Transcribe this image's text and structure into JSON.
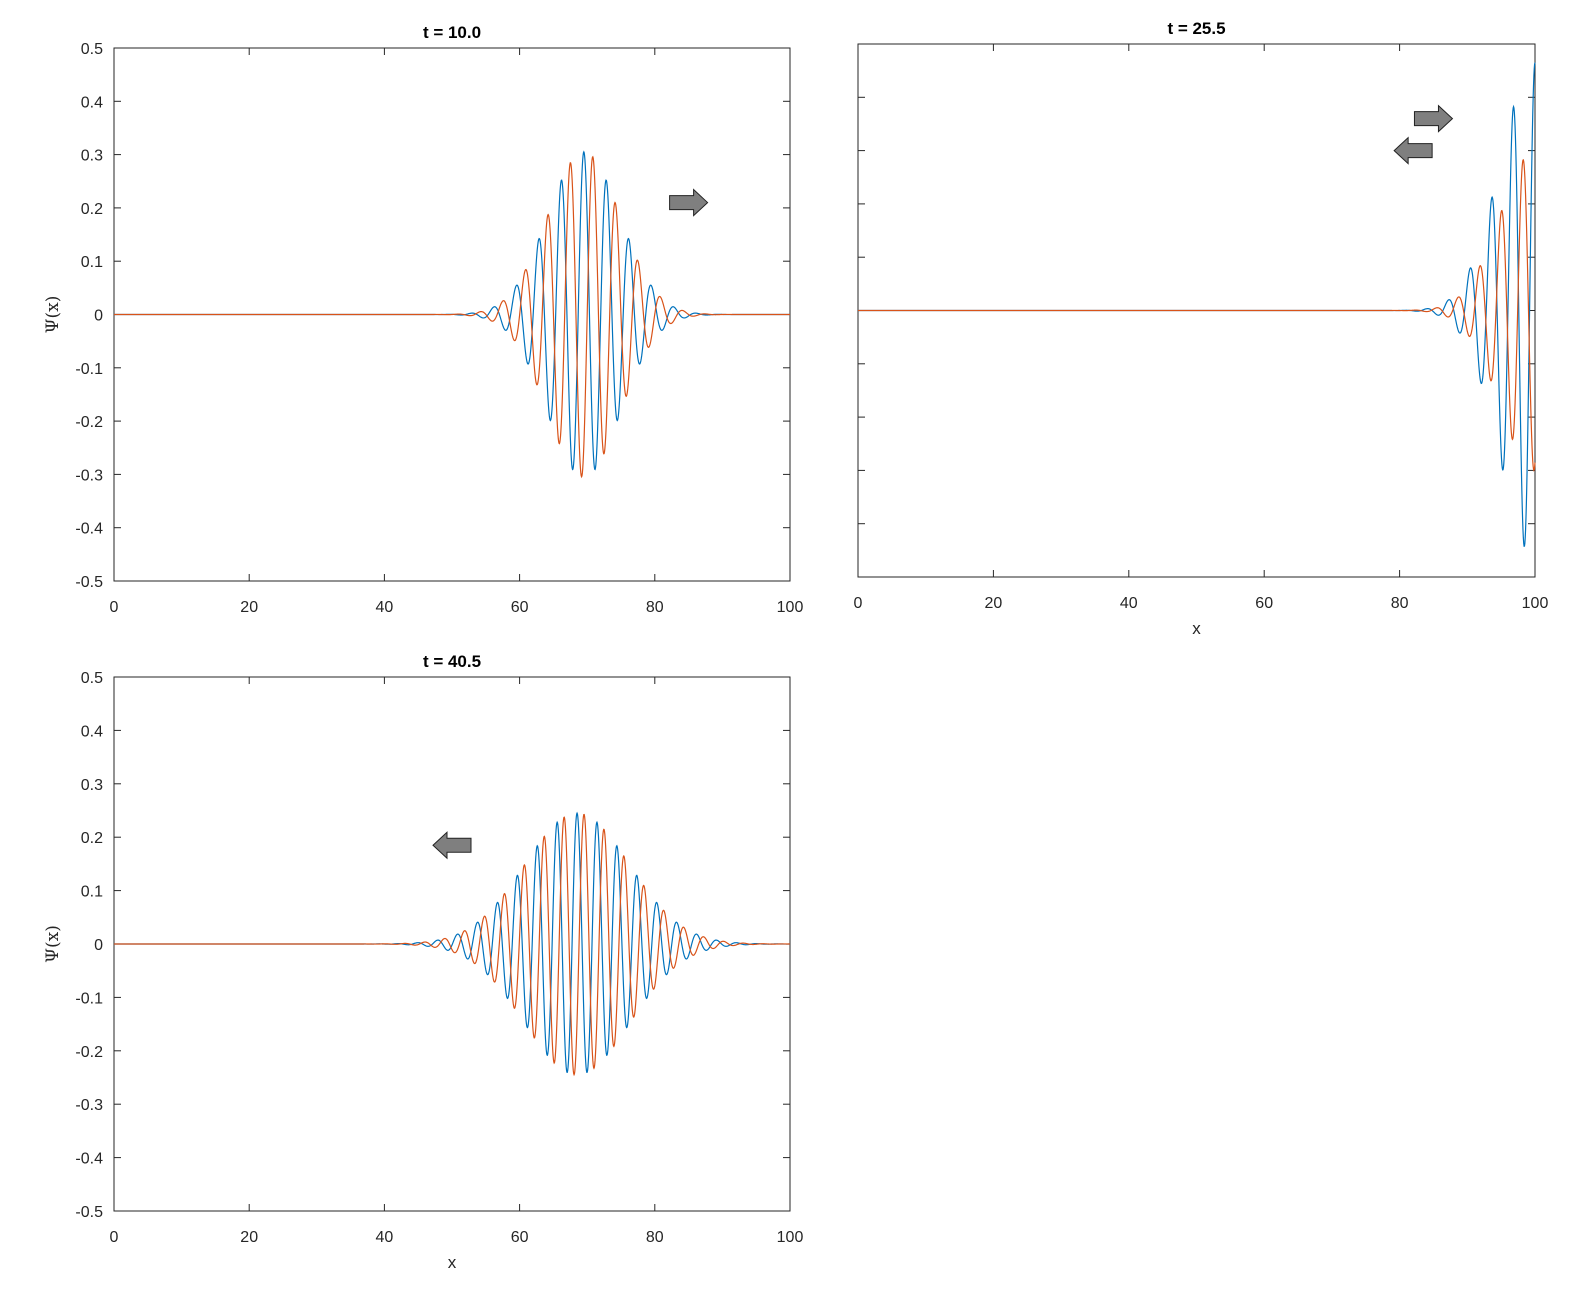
{
  "chart_data": [
    {
      "type": "line",
      "title": "t = 10.0",
      "xlabel": "",
      "ylabel": "Ψ(x)",
      "xlim": [
        0,
        100
      ],
      "ylim": [
        -0.5,
        0.5
      ],
      "xticks": [
        "0",
        "20",
        "40",
        "60",
        "80",
        "100"
      ],
      "yticks": [
        "0.5",
        "0.4",
        "0.3",
        "0.2",
        "0.1",
        "0",
        "-0.1",
        "-0.2",
        "-0.3",
        "-0.4",
        "-0.5"
      ],
      "packet": {
        "center": 69.5,
        "width": 7.6,
        "amplitude": 0.305,
        "wavelength": 3.33,
        "phase_shift": 0.8,
        "envelope": "gaussian"
      },
      "arrows": [
        {
          "direction": "right",
          "x": 85,
          "y": 0.21
        }
      ],
      "series_colors": [
        "#0072BD",
        "#D95319"
      ]
    },
    {
      "type": "line",
      "title": "t = 25.5",
      "xlabel": "x",
      "ylabel": "",
      "xlim": [
        0,
        100
      ],
      "ylim": [
        -0.5,
        0.5
      ],
      "xticks": [
        "0",
        "20",
        "40",
        "60",
        "80",
        "100"
      ],
      "yticks": [],
      "packet": {
        "center": 100,
        "width": 7.2,
        "amplitude_blue": 0.465,
        "amplitude_orange": 0.3,
        "wavelength": 3.2,
        "phase_shift": 0.9,
        "envelope": "gaussian"
      },
      "arrows": [
        {
          "direction": "right",
          "x": 85,
          "y": 0.36
        },
        {
          "direction": "left",
          "x": 82,
          "y": 0.3
        }
      ],
      "series_colors": [
        "#0072BD",
        "#D95319"
      ]
    },
    {
      "type": "line",
      "title": "t = 40.5",
      "xlabel": "x",
      "ylabel": "Ψ(x)",
      "xlim": [
        0,
        100
      ],
      "ylim": [
        -0.5,
        0.5
      ],
      "xticks": [
        "0",
        "20",
        "40",
        "60",
        "80",
        "100"
      ],
      "yticks": [
        "0.5",
        "0.4",
        "0.3",
        "0.2",
        "0.1",
        "0",
        "-0.1",
        "-0.2",
        "-0.3",
        "-0.4",
        "-0.5"
      ],
      "packet": {
        "center": 68.5,
        "width": 11,
        "amplitude": 0.245,
        "wavelength": 2.95,
        "phase_shift": 0.7,
        "envelope": "gaussian"
      },
      "arrows": [
        {
          "direction": "left",
          "x": 50,
          "y": 0.185
        }
      ],
      "series_colors": [
        "#0072BD",
        "#D95319"
      ]
    }
  ]
}
